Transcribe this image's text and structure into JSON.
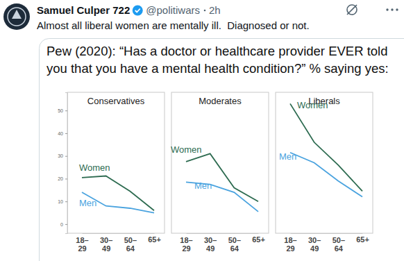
{
  "post": {
    "author": "Samuel Culper 722",
    "handle": "@politiwars",
    "time": "2h",
    "text": "Almost all liberal women are mentally ill.  Diagnosed or not."
  },
  "figure": {
    "title_lines": [
      "Pew (2020): “Has a doctor or healthcare provider EVER told",
      "you that you have a mental health condition?” % saying yes:"
    ]
  },
  "chart_data": [
    {
      "type": "line",
      "title": "Conservatives",
      "categories": [
        "18–29",
        "30–49",
        "50–64",
        "65+"
      ],
      "series": [
        {
          "name": "Women",
          "color": "#2d6b50",
          "values": [
            20.5,
            21.2,
            14.5,
            6
          ]
        },
        {
          "name": "Men",
          "color": "#4aa3df",
          "values": [
            14,
            8,
            7,
            5
          ]
        }
      ],
      "ylim": [
        -4,
        58
      ],
      "yticks": [
        0,
        10,
        20,
        30,
        40,
        50
      ]
    },
    {
      "type": "line",
      "title": "Moderates",
      "categories": [
        "18–29",
        "30–49",
        "50–64",
        "65+"
      ],
      "series": [
        {
          "name": "Women",
          "color": "#2d6b50",
          "values": [
            27.5,
            31,
            16,
            10
          ]
        },
        {
          "name": "Men",
          "color": "#4aa3df",
          "values": [
            18.5,
            17.5,
            14,
            5.5
          ]
        }
      ],
      "ylim": [
        -4,
        58
      ],
      "tick_labels": "x"
    },
    {
      "type": "line",
      "title": "Liberals",
      "categories": [
        "18–29",
        "30–49",
        "50–64",
        "65+"
      ],
      "series": [
        {
          "name": "Women",
          "color": "#2d6b50",
          "values": [
            53,
            36,
            26,
            14.5
          ]
        },
        {
          "name": "Men",
          "color": "#4aa3df",
          "values": [
            31.5,
            27,
            19,
            12
          ]
        }
      ],
      "ylim": [
        -4,
        58
      ],
      "tick_labels": "x"
    }
  ]
}
